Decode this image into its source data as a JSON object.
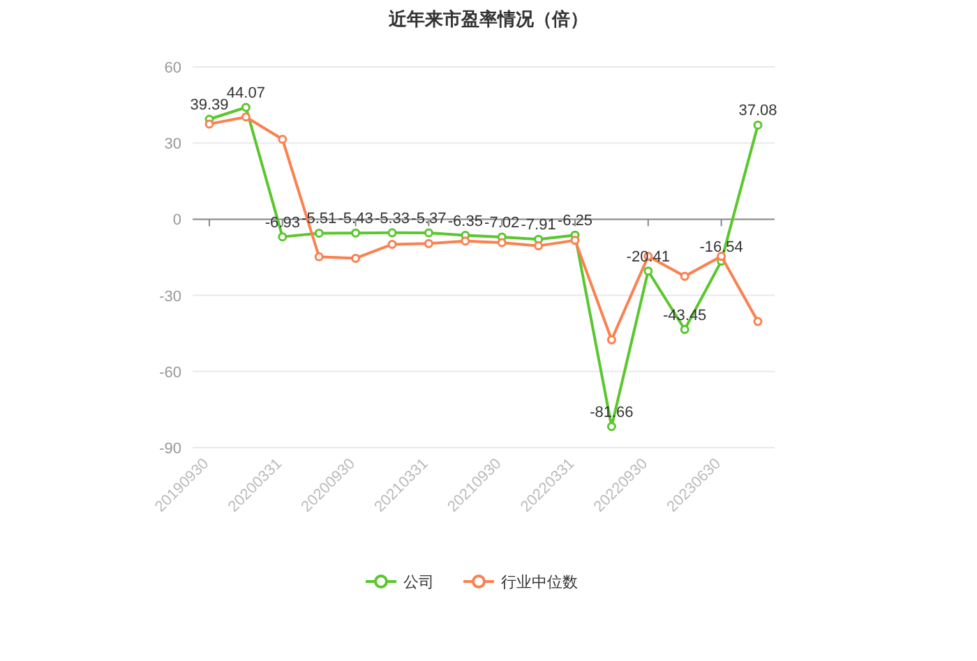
{
  "chart_data": {
    "type": "line",
    "title": "近年来市盈率情况（倍）",
    "categories": [
      "20190930",
      null,
      "20200331",
      null,
      "20200930",
      null,
      "20210331",
      null,
      "20210930",
      null,
      "20220331",
      null,
      "20220930",
      null,
      "20230630",
      null
    ],
    "series": [
      {
        "name": "公司",
        "color": "#5ac72e",
        "values": [
          39.39,
          44.07,
          -6.93,
          -5.51,
          -5.43,
          -5.33,
          -5.37,
          -6.35,
          -7.02,
          -7.91,
          -6.25,
          -81.66,
          -20.41,
          -43.45,
          -16.54,
          37.08
        ],
        "data_labels": true
      },
      {
        "name": "行业中位数",
        "color": "#fa8150",
        "values": [
          37.5,
          40.3,
          31.5,
          -14.8,
          -15.4,
          -9.9,
          -9.6,
          -8.6,
          -9.2,
          -10.5,
          -8.3,
          -47.5,
          -14.6,
          -22.5,
          -14.6,
          -40.3
        ]
      }
    ],
    "ylim": [
      -90,
      60
    ],
    "yticks": [
      -90,
      -60,
      -30,
      0,
      30,
      60
    ],
    "grid": "y",
    "legend": "bottom",
    "marker": "circle",
    "line_style": "solid"
  }
}
